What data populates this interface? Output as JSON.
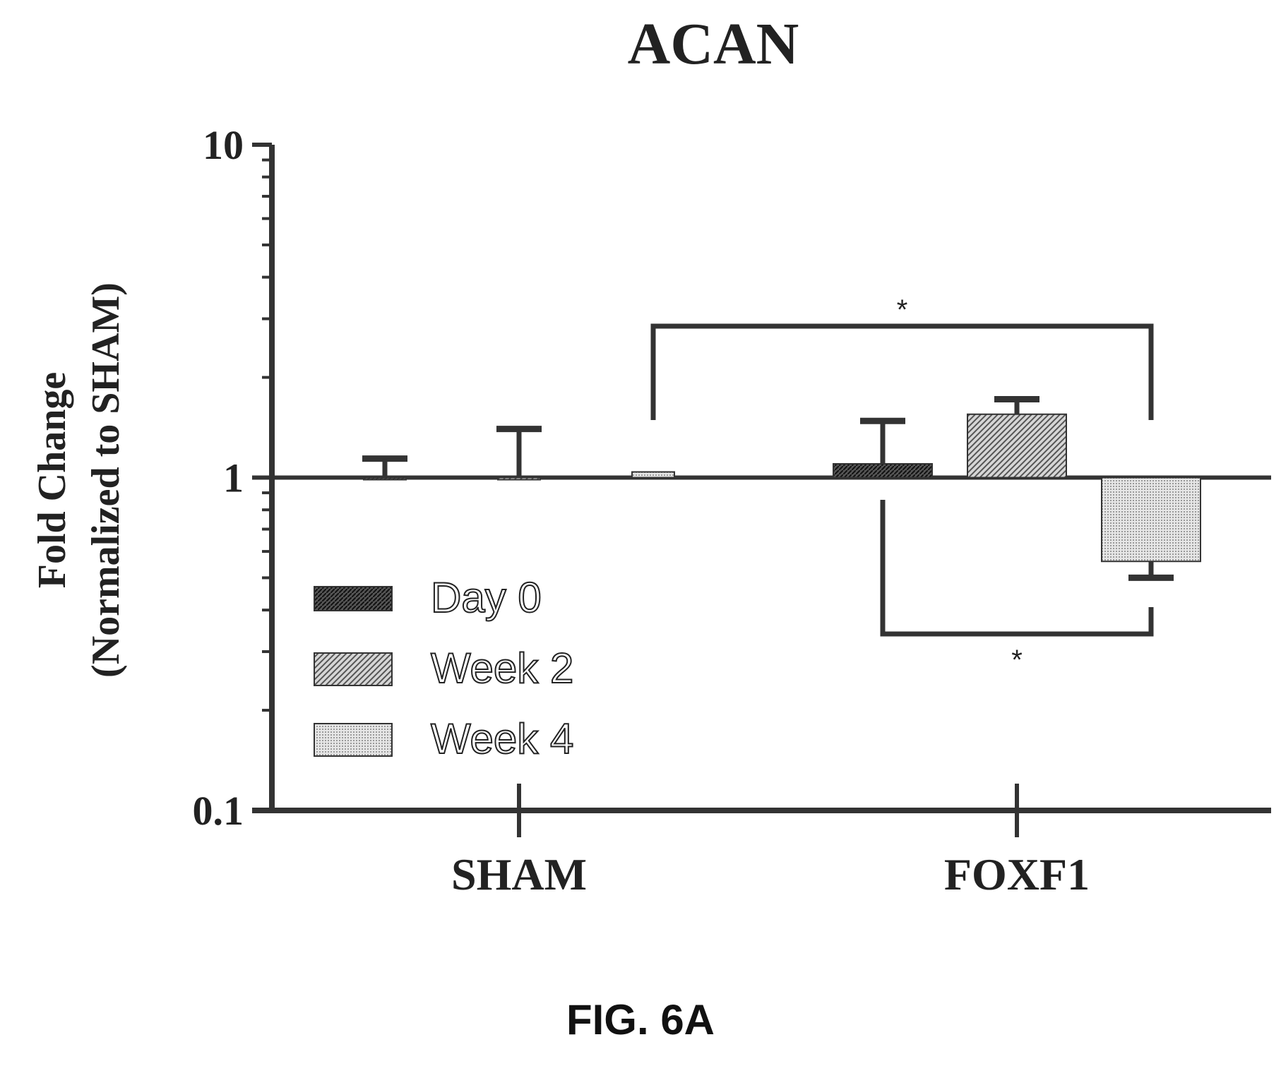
{
  "figure_label": "FIG. 6A",
  "chart_data": {
    "type": "bar",
    "title": "ACAN",
    "ylabel_line1": "Fold Change",
    "ylabel_line2": "(Normalized to SHAM)",
    "xlabel": "",
    "yscale": "log",
    "ylim": [
      0.1,
      10
    ],
    "yticks": [
      {
        "value": 0.1,
        "label": "0.1"
      },
      {
        "value": 1,
        "label": "1"
      },
      {
        "value": 10,
        "label": "10"
      }
    ],
    "baseline": 1,
    "categories": [
      "SHAM",
      "FOXF1"
    ],
    "series": [
      {
        "name": "Day 0",
        "values": [
          1.0,
          1.1
        ],
        "errors": [
          1.14,
          1.48
        ]
      },
      {
        "name": "Week 2",
        "values": [
          1.0,
          1.55
        ],
        "errors": [
          1.4,
          1.72
        ]
      },
      {
        "name": "Week 4",
        "values": [
          1.04,
          0.56
        ],
        "errors": [
          null,
          0.5
        ]
      }
    ],
    "legend": {
      "position": "center-left"
    },
    "colors": {
      "Day 0": "#3a3a3a",
      "Week 2": "#8a8a8a",
      "Week 4": "#c9c9c9"
    },
    "annotations": [
      {
        "label": "*",
        "compare": [
          "SHAM Week 4",
          "FOXF1 Week 4"
        ],
        "side": "above"
      },
      {
        "label": "*",
        "compare": [
          "FOXF1 Day 0",
          "FOXF1 Week 4"
        ],
        "side": "below"
      }
    ]
  }
}
